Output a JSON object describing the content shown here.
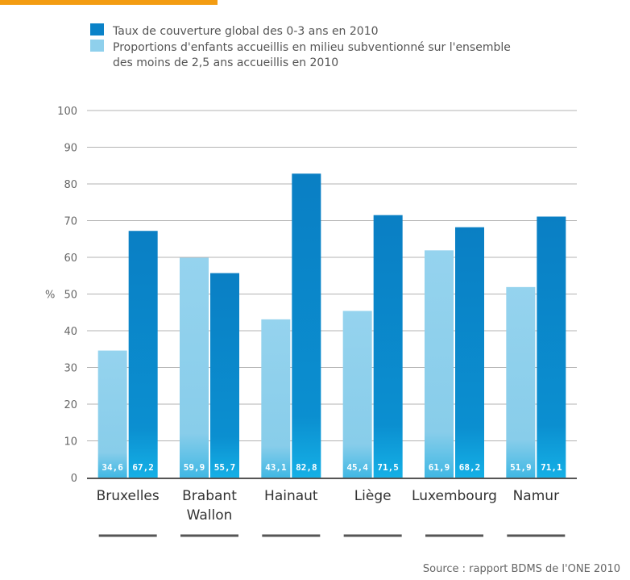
{
  "chart_data": {
    "type": "bar",
    "title": "",
    "xlabel": "",
    "ylabel": "%",
    "ylim": [
      0,
      100
    ],
    "yticks": [
      0,
      10,
      20,
      30,
      40,
      50,
      60,
      70,
      80,
      90,
      100
    ],
    "grid": true,
    "legend_position": "top",
    "categories": [
      [
        "Bruxelles"
      ],
      [
        "Brabant",
        "Wallon"
      ],
      [
        "Hainaut"
      ],
      [
        "Liège"
      ],
      [
        "Luxembourg"
      ],
      [
        "Namur"
      ]
    ],
    "series": [
      {
        "name": "Proportions d'enfants accueillis en milieu subventionné sur l'ensemble des moins de 2,5 ans accueillis en 2010",
        "name_lines": [
          "Proportions d'enfants accueillis en milieu subventionné sur l'ensemble",
          "des moins de 2,5 ans accueillis en 2010"
        ],
        "values": [
          34.6,
          59.9,
          43.1,
          45.4,
          61.9,
          51.9
        ],
        "labels": [
          "34,6",
          "59,9",
          "43,1",
          "45,4",
          "61,9",
          "51,9"
        ],
        "color": "#8fd0ec"
      },
      {
        "name": "Taux de couverture global des 0-3 ans en 2010",
        "name_lines": [
          "Taux de couverture global des 0-3 ans en 2010"
        ],
        "values": [
          67.2,
          55.7,
          82.8,
          71.5,
          68.2,
          71.1
        ],
        "labels": [
          "67,2",
          "55,7",
          "82,8",
          "71,5",
          "68,2",
          "71,1"
        ],
        "color": "#0a82c8"
      }
    ],
    "legend_order": [
      1,
      0
    ],
    "source": "Source : rapport BDMS de l'ONE 2010"
  }
}
